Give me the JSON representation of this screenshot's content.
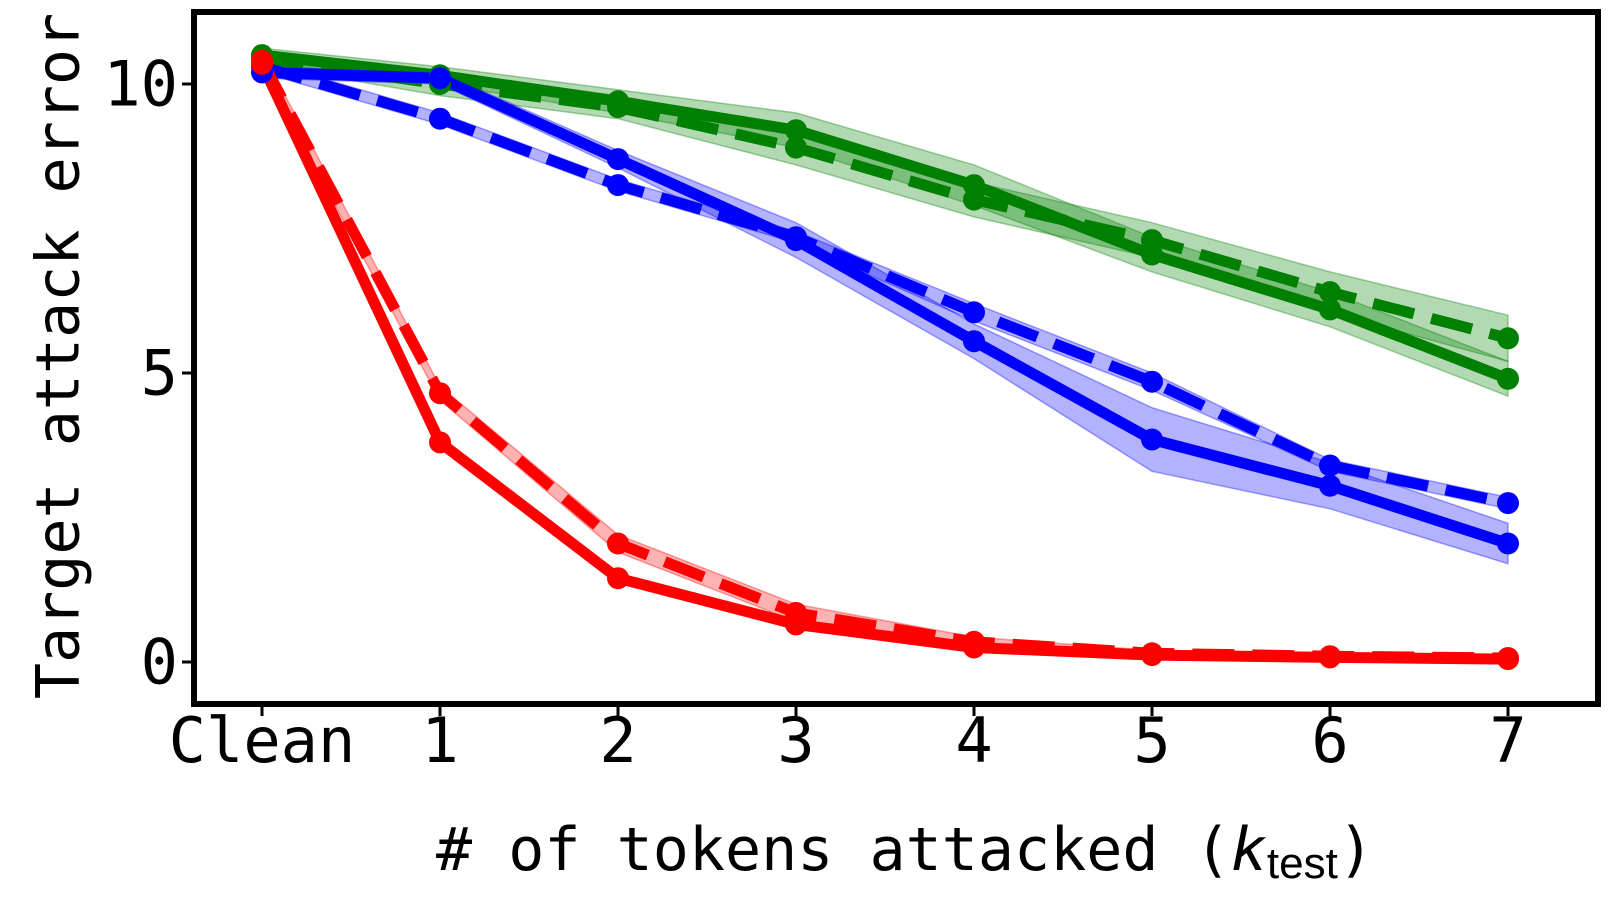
{
  "chart_data": {
    "type": "line",
    "title": "",
    "xlabel": "# of tokens attacked (",
    "xlabel_var": "k",
    "xlabel_sub": "test",
    "xlabel_close": ")",
    "ylabel": "Target attack error",
    "categories": [
      "Clean",
      "1",
      "2",
      "3",
      "4",
      "5",
      "6",
      "7"
    ],
    "yticks": [
      "0",
      "5",
      "10"
    ],
    "ylim": [
      -0.3,
      11.4
    ],
    "grid": false,
    "legend": "none",
    "series": [
      {
        "color": "#008000",
        "dash": "solid",
        "values": [
          10.5,
          10.15,
          9.7,
          9.2,
          8.25,
          7.05,
          6.1,
          4.9
        ],
        "band": [
          0.12,
          0.15,
          0.2,
          0.3,
          0.35,
          0.3,
          0.3,
          0.3
        ]
      },
      {
        "color": "#008000",
        "dash": "dashed",
        "values": [
          10.45,
          10.0,
          9.6,
          8.9,
          8.0,
          7.3,
          6.4,
          5.6
        ],
        "band": [
          0.12,
          0.2,
          0.2,
          0.3,
          0.3,
          0.3,
          0.35,
          0.4
        ]
      },
      {
        "color": "#0000ff",
        "dash": "solid",
        "values": [
          10.2,
          10.1,
          8.7,
          7.3,
          5.55,
          3.85,
          3.05,
          2.05
        ],
        "band": [
          0.1,
          0.1,
          0.15,
          0.3,
          0.3,
          0.55,
          0.4,
          0.35
        ]
      },
      {
        "color": "#0000ff",
        "dash": "dashed",
        "values": [
          10.3,
          9.4,
          8.25,
          7.35,
          6.05,
          4.85,
          3.4,
          2.75
        ],
        "band": [
          0.1,
          0.1,
          0.1,
          0.1,
          0.15,
          0.15,
          0.1,
          0.1
        ]
      },
      {
        "color": "#ff0000",
        "dash": "solid",
        "values": [
          10.35,
          3.8,
          1.45,
          0.65,
          0.25,
          0.12,
          0.08,
          0.05
        ],
        "band": [
          0.05,
          0.05,
          0.05,
          0.05,
          0.05,
          0.05,
          0.03,
          0.03
        ]
      },
      {
        "color": "#ff0000",
        "dash": "dashed",
        "values": [
          10.4,
          4.65,
          2.05,
          0.85,
          0.35,
          0.15,
          0.1,
          0.07
        ],
        "band": [
          0.15,
          0.12,
          0.15,
          0.15,
          0.08,
          0.05,
          0.03,
          0.03
        ]
      }
    ]
  }
}
